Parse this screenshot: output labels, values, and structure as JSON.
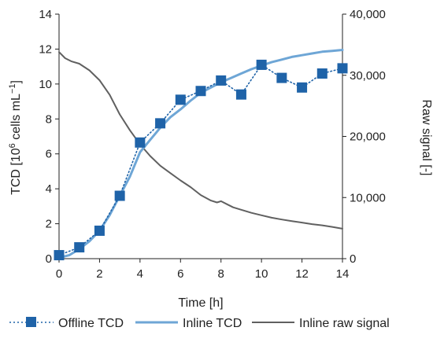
{
  "chart_data": {
    "type": "line",
    "xlabel": "Time [h]",
    "ylabel_left_parts": {
      "a": "TCD [10",
      "sup": "6",
      "b": " cells mL",
      "sup2": "−1",
      "c": "]"
    },
    "ylabel_right": "Raw signal [-]",
    "xlim": [
      0,
      14
    ],
    "ylim_left": [
      0,
      14
    ],
    "ylim_right": [
      0,
      40000
    ],
    "x_ticks": [
      "0",
      "2",
      "4",
      "6",
      "8",
      "10",
      "12",
      "14"
    ],
    "y_left_ticks": [
      "0",
      "2",
      "4",
      "6",
      "8",
      "10",
      "12",
      "14"
    ],
    "y_right_ticks": [
      "0",
      "10,000",
      "20,000",
      "30,000",
      "40,000"
    ],
    "grid": false,
    "legend_position": "bottom",
    "series": [
      {
        "name": "Offline TCD",
        "axis": "left",
        "style": "dotted-square",
        "color": "#1f63a8",
        "x": [
          0,
          1,
          2,
          3,
          4,
          5,
          6,
          7,
          8,
          9,
          10,
          11,
          12,
          13,
          14
        ],
        "y": [
          0.2,
          0.65,
          1.6,
          3.6,
          6.65,
          7.75,
          9.1,
          9.6,
          10.2,
          9.4,
          11.1,
          10.35,
          9.8,
          10.6,
          10.9
        ]
      },
      {
        "name": "Inline TCD",
        "axis": "left",
        "style": "solid",
        "color": "#6ea6d6",
        "x": [
          0,
          0.5,
          1,
          1.5,
          2,
          2.5,
          3,
          3.5,
          4,
          4.5,
          5,
          5.5,
          6,
          6.5,
          7,
          7.5,
          8,
          8.5,
          9,
          9.5,
          10,
          10.5,
          11,
          11.5,
          12,
          12.5,
          13,
          13.5,
          14
        ],
        "y": [
          0.05,
          0.2,
          0.55,
          1.0,
          1.6,
          2.5,
          3.6,
          4.7,
          6.1,
          6.8,
          7.5,
          8.1,
          8.55,
          9.05,
          9.5,
          9.8,
          10.1,
          10.35,
          10.6,
          10.85,
          11.05,
          11.25,
          11.4,
          11.55,
          11.65,
          11.75,
          11.85,
          11.9,
          11.95
        ]
      },
      {
        "name": "Inline raw signal",
        "axis": "right",
        "style": "solid",
        "color": "#606060",
        "x": [
          0,
          0.3,
          0.6,
          1,
          1.5,
          2,
          2.5,
          3,
          3.5,
          4,
          4.5,
          5,
          5.5,
          6,
          6.5,
          7,
          7.5,
          7.8,
          8,
          8.3,
          8.6,
          9,
          9.5,
          10,
          10.5,
          11,
          11.5,
          12,
          12.5,
          13,
          13.5,
          14
        ],
        "y": [
          33800,
          32800,
          32300,
          31900,
          30800,
          29200,
          26800,
          23600,
          21000,
          18700,
          16800,
          15200,
          14000,
          12800,
          11700,
          10400,
          9500,
          9200,
          9400,
          8900,
          8400,
          8000,
          7500,
          7100,
          6700,
          6400,
          6150,
          5900,
          5650,
          5450,
          5200,
          4900
        ]
      }
    ]
  }
}
